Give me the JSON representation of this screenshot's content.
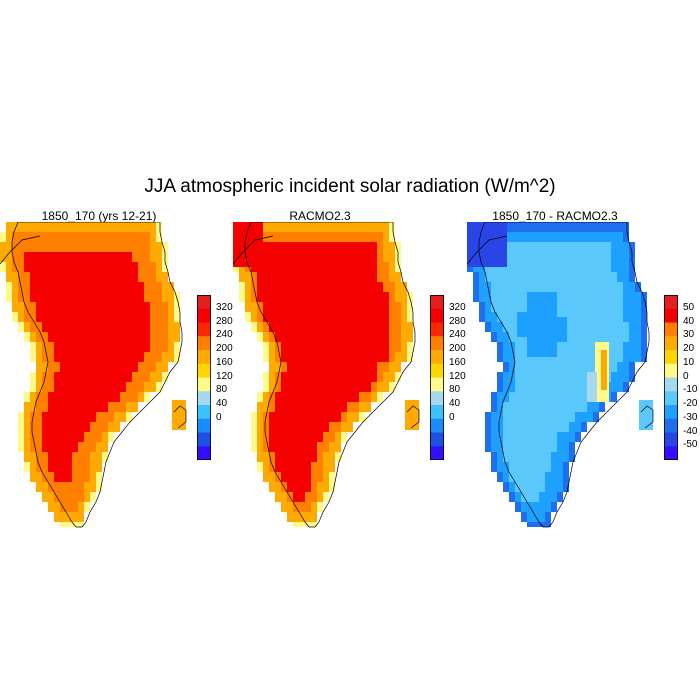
{
  "title": "JJA atmospheric incident solar radiation (W/m^2)",
  "panels": [
    {
      "title": "1850_170 (yrs 12-21)"
    },
    {
      "title": "RACMO2.3"
    },
    {
      "title": "1850_170 - RACMO2.3"
    }
  ],
  "colorbars": {
    "absolute": {
      "labels": [
        "320",
        "280",
        "240",
        "200",
        "160",
        "120",
        "80",
        "40",
        "0"
      ],
      "colors": [
        "#e3201f",
        "#f50000",
        "#fa2800",
        "#ff7f00",
        "#ffaa00",
        "#ffd500",
        "#fff88a",
        "#a8d8ef",
        "#3bc1ff",
        "#1a8cff",
        "#1e50e6",
        "#3210ff"
      ]
    },
    "difference": {
      "labels": [
        "50",
        "40",
        "30",
        "20",
        "10",
        "0",
        "-10",
        "-20",
        "-30",
        "-40",
        "-50"
      ],
      "colors": [
        "#e3201f",
        "#f50000",
        "#ff7f00",
        "#ffaa00",
        "#ffd500",
        "#fff88a",
        "#a8d8ef",
        "#5ac8fa",
        "#1ea0ff",
        "#1e6ef0",
        "#2846e6",
        "#3210ff"
      ]
    }
  }
}
